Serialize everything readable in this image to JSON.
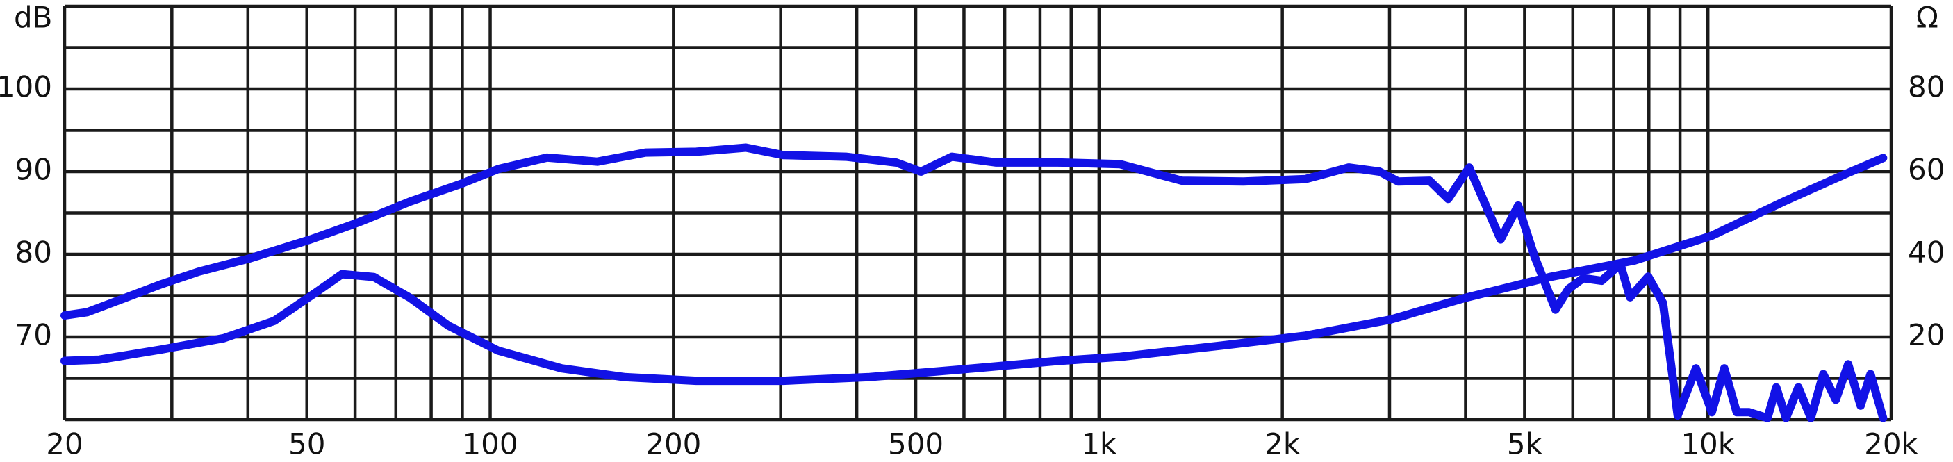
{
  "chart_data": {
    "type": "line",
    "y_label": "dB",
    "y2_label": "Ω",
    "xscale": "log",
    "xlim": [
      20,
      20000
    ],
    "xticks": [
      20,
      50,
      100,
      200,
      500,
      {
        "value": 1000,
        "label": "1k"
      },
      {
        "value": 2000,
        "label": "2k"
      },
      {
        "value": 5000,
        "label": "5k"
      },
      {
        "value": 10000,
        "label": "10k"
      },
      {
        "value": 20000,
        "label": "20k"
      }
    ],
    "xgrid": [
      20,
      30,
      40,
      50,
      60,
      70,
      80,
      90,
      100,
      200,
      300,
      400,
      500,
      600,
      700,
      800,
      900,
      1000,
      2000,
      3000,
      4000,
      5000,
      6000,
      7000,
      8000,
      9000,
      10000,
      20000
    ],
    "ylim": [
      60,
      110
    ],
    "yticks": [
      70,
      80,
      90,
      100
    ],
    "ygrid": [
      60,
      65,
      70,
      75,
      80,
      85,
      90,
      95,
      100,
      105,
      110
    ],
    "y2lim": [
      0,
      100
    ],
    "y2ticks": [
      20,
      40,
      60,
      80
    ],
    "grid": true,
    "series": [
      {
        "color": "#1212e6",
        "x": [
          20,
          21.8,
          25.3,
          28.9,
          33.2,
          40.3,
          50.7,
          61,
          74,
          89.4,
          103,
          124,
          150,
          180,
          218,
          263,
          303,
          384,
          464,
          510,
          573,
          678,
          857,
          1083,
          1368,
          1727,
          2184,
          2571,
          2889,
          3100,
          3490,
          3745,
          4055,
          4567,
          4880,
          5187,
          5620,
          5900,
          6240,
          6690,
          7180,
          7450,
          7980,
          8440,
          8920,
          9560,
          10150,
          10640,
          11150,
          11690,
          12530,
          12950,
          13440,
          14080,
          14760,
          15470,
          16220,
          17000,
          17820,
          18500,
          19400
        ],
        "values": [
          72.6,
          73.0,
          74.8,
          76.4,
          77.9,
          79.5,
          81.8,
          83.9,
          86.4,
          88.5,
          90.3,
          91.7,
          91.2,
          92.3,
          92.4,
          92.9,
          92.0,
          91.8,
          91.1,
          90.0,
          91.8,
          91.1,
          91.1,
          90.9,
          88.9,
          88.8,
          89.1,
          90.5,
          90.0,
          88.8,
          88.9,
          86.7,
          90.5,
          81.8,
          85.9,
          79.8,
          73.3,
          75.8,
          77.1,
          76.8,
          78.8,
          74.8,
          77.3,
          74.1,
          60.5,
          66.2,
          60.9,
          66.2,
          60.9,
          60.9,
          60.2,
          63.9,
          60.2,
          63.9,
          60.2,
          65.5,
          62.4,
          66.7,
          61.7,
          65.5,
          60.2
        ]
      },
      {
        "color": "#1212e6",
        "axis": "y2",
        "x": [
          20,
          22.8,
          28.9,
          36.5,
          44.2,
          51.9,
          57.1,
          64.4,
          74,
          85.4,
          103,
          131,
          166,
          218,
          303,
          420,
          589,
          857,
          1083,
          1585,
          2184,
          3010,
          3980,
          5500,
          7580,
          10150,
          13440,
          17000,
          19400
        ],
        "values": [
          14.2,
          14.5,
          17.0,
          19.7,
          23.9,
          30.9,
          35.2,
          34.5,
          29.4,
          22.7,
          16.7,
          12.4,
          10.3,
          9.4,
          9.4,
          10.3,
          12.1,
          14.2,
          15.2,
          17.9,
          20.3,
          24.2,
          29.4,
          34.5,
          38.5,
          44.5,
          53.0,
          59.7,
          63.3
        ]
      }
    ]
  }
}
